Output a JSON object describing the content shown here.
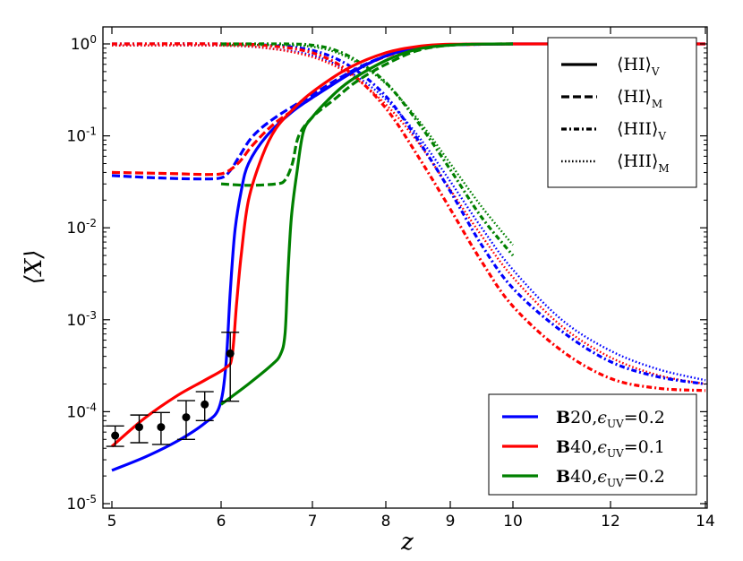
{
  "chart_data": {
    "type": "line",
    "title": "",
    "xlabel": "z",
    "ylabel": "⟨X⟩",
    "x_scale": "linear (compressed below z=10)",
    "y_scale": "log",
    "xlim": [
      5,
      14
    ],
    "ylim": [
      1e-05,
      1.5
    ],
    "x_ticks": [
      {
        "value": 5,
        "label": "5"
      },
      {
        "value": 6,
        "label": "6"
      },
      {
        "value": 7,
        "label": "7"
      },
      {
        "value": 8,
        "label": "8"
      },
      {
        "value": 9,
        "label": "9"
      },
      {
        "value": 10,
        "label": "10"
      },
      {
        "value": 12,
        "label": "12"
      },
      {
        "value": 14,
        "label": "14"
      }
    ],
    "y_ticks": [
      {
        "value": 1e-05,
        "base": "10",
        "exp": "-5"
      },
      {
        "value": 0.0001,
        "base": "10",
        "exp": "-4"
      },
      {
        "value": 0.001,
        "base": "10",
        "exp": "-3"
      },
      {
        "value": 0.01,
        "base": "10",
        "exp": "-2"
      },
      {
        "value": 0.1,
        "base": "10",
        "exp": "-1"
      },
      {
        "value": 1,
        "base": "10",
        "exp": "0"
      }
    ],
    "colors": {
      "B20_0.2": "#0000ff",
      "B40_0.1": "#ff0000",
      "B40_0.2": "#008000",
      "axis": "#000000"
    },
    "series": [
      {
        "name": "B20 eUV=0.2 <HI>_V",
        "color_key": "B20_0.2",
        "style": "solid",
        "points": [
          [
            5.0,
            2.3e-05
          ],
          [
            5.3,
            3.2e-05
          ],
          [
            5.6,
            4.8e-05
          ],
          [
            5.85,
            7.5e-05
          ],
          [
            5.98,
            0.00011
          ],
          [
            6.05,
            0.0003
          ],
          [
            6.1,
            0.002
          ],
          [
            6.15,
            0.009
          ],
          [
            6.22,
            0.025
          ],
          [
            6.3,
            0.05
          ],
          [
            6.5,
            0.1
          ],
          [
            6.8,
            0.19
          ],
          [
            7.2,
            0.33
          ],
          [
            7.6,
            0.52
          ],
          [
            8.0,
            0.74
          ],
          [
            8.5,
            0.92
          ],
          [
            9.0,
            0.98
          ],
          [
            10.0,
            1.0
          ],
          [
            12.0,
            1.0
          ],
          [
            14.0,
            1.0
          ]
        ]
      },
      {
        "name": "B20 eUV=0.2 <HI>_M",
        "color_key": "B20_0.2",
        "style": "dashed",
        "points": [
          [
            5.0,
            0.037
          ],
          [
            5.4,
            0.035
          ],
          [
            5.8,
            0.034
          ],
          [
            6.0,
            0.035
          ],
          [
            6.1,
            0.042
          ],
          [
            6.2,
            0.06
          ],
          [
            6.35,
            0.1
          ],
          [
            6.6,
            0.16
          ],
          [
            7.0,
            0.28
          ],
          [
            7.4,
            0.44
          ],
          [
            7.8,
            0.64
          ],
          [
            8.3,
            0.86
          ],
          [
            8.8,
            0.96
          ],
          [
            9.5,
            0.99
          ],
          [
            10.0,
            1.0
          ]
        ]
      },
      {
        "name": "B20 eUV=0.2 <HII>_V",
        "color_key": "B20_0.2",
        "style": "dashdot",
        "points": [
          [
            5.0,
            1.0
          ],
          [
            6.0,
            1.0
          ],
          [
            6.5,
            0.97
          ],
          [
            7.0,
            0.85
          ],
          [
            7.5,
            0.58
          ],
          [
            8.0,
            0.27
          ],
          [
            8.5,
            0.09
          ],
          [
            9.0,
            0.025
          ],
          [
            9.5,
            0.0065
          ],
          [
            10.0,
            0.0022
          ],
          [
            11.0,
            0.00075
          ],
          [
            12.0,
            0.00035
          ],
          [
            13.0,
            0.00024
          ],
          [
            14.0,
            0.0002
          ]
        ]
      },
      {
        "name": "B20 eUV=0.2 <HII>_M",
        "color_key": "B20_0.2",
        "style": "dotted",
        "points": [
          [
            5.0,
            0.96
          ],
          [
            6.0,
            0.96
          ],
          [
            6.5,
            0.9
          ],
          [
            7.0,
            0.75
          ],
          [
            7.5,
            0.5
          ],
          [
            8.0,
            0.25
          ],
          [
            8.5,
            0.1
          ],
          [
            9.0,
            0.032
          ],
          [
            9.5,
            0.01
          ],
          [
            10.0,
            0.0035
          ],
          [
            11.0,
            0.001
          ],
          [
            12.0,
            0.00046
          ],
          [
            13.0,
            0.00029
          ],
          [
            14.0,
            0.00022
          ]
        ]
      },
      {
        "name": "B40 eUV=0.1 <HI>_V",
        "color_key": "B40_0.1",
        "style": "solid",
        "points": [
          [
            5.0,
            4.2e-05
          ],
          [
            5.3,
            8.5e-05
          ],
          [
            5.6,
            0.00015
          ],
          [
            5.85,
            0.00022
          ],
          [
            6.05,
            0.0003
          ],
          [
            6.12,
            0.0004
          ],
          [
            6.17,
            0.0015
          ],
          [
            6.22,
            0.005
          ],
          [
            6.3,
            0.02
          ],
          [
            6.45,
            0.06
          ],
          [
            6.6,
            0.12
          ],
          [
            6.8,
            0.2
          ],
          [
            7.0,
            0.3
          ],
          [
            7.5,
            0.55
          ],
          [
            8.0,
            0.8
          ],
          [
            8.5,
            0.94
          ],
          [
            9.0,
            0.99
          ],
          [
            10.0,
            1.0
          ],
          [
            12.0,
            1.0
          ],
          [
            14.0,
            1.0
          ]
        ]
      },
      {
        "name": "B40 eUV=0.1 <HI>_M",
        "color_key": "B40_0.1",
        "style": "dashed",
        "points": [
          [
            5.0,
            0.04
          ],
          [
            5.5,
            0.039
          ],
          [
            5.9,
            0.038
          ],
          [
            6.05,
            0.04
          ],
          [
            6.2,
            0.052
          ],
          [
            6.35,
            0.08
          ],
          [
            6.6,
            0.14
          ],
          [
            7.0,
            0.26
          ],
          [
            7.4,
            0.42
          ],
          [
            7.8,
            0.63
          ],
          [
            8.3,
            0.85
          ],
          [
            8.8,
            0.96
          ],
          [
            9.5,
            0.99
          ],
          [
            10.0,
            1.0
          ]
        ]
      },
      {
        "name": "B40 eUV=0.1 <HII>_V",
        "color_key": "B40_0.1",
        "style": "dashdot",
        "points": [
          [
            5.0,
            1.0
          ],
          [
            6.0,
            1.0
          ],
          [
            6.5,
            0.96
          ],
          [
            7.0,
            0.8
          ],
          [
            7.5,
            0.5
          ],
          [
            8.0,
            0.2
          ],
          [
            8.5,
            0.06
          ],
          [
            9.0,
            0.016
          ],
          [
            9.5,
            0.0043
          ],
          [
            10.0,
            0.0014
          ],
          [
            11.0,
            0.00046
          ],
          [
            12.0,
            0.00023
          ],
          [
            13.0,
            0.00018
          ],
          [
            14.0,
            0.00017
          ]
        ]
      },
      {
        "name": "B40 eUV=0.1 <HII>_M",
        "color_key": "B40_0.1",
        "style": "dotted",
        "points": [
          [
            5.0,
            0.96
          ],
          [
            6.0,
            0.96
          ],
          [
            6.5,
            0.9
          ],
          [
            7.0,
            0.72
          ],
          [
            7.5,
            0.47
          ],
          [
            8.0,
            0.22
          ],
          [
            8.5,
            0.085
          ],
          [
            9.0,
            0.026
          ],
          [
            9.5,
            0.0082
          ],
          [
            10.0,
            0.0029
          ],
          [
            11.0,
            0.00085
          ],
          [
            12.0,
            0.00039
          ],
          [
            13.0,
            0.00025
          ],
          [
            14.0,
            0.0002
          ]
        ]
      },
      {
        "name": "B40 eUV=0.2 <HI>_V",
        "color_key": "B40_0.2",
        "style": "solid",
        "points": [
          [
            6.0,
            0.00012
          ],
          [
            6.3,
            0.0002
          ],
          [
            6.55,
            0.00032
          ],
          [
            6.65,
            0.00042
          ],
          [
            6.7,
            0.0007
          ],
          [
            6.73,
            0.003
          ],
          [
            6.77,
            0.013
          ],
          [
            6.83,
            0.04
          ],
          [
            6.9,
            0.11
          ],
          [
            7.0,
            0.16
          ],
          [
            7.2,
            0.24
          ],
          [
            7.5,
            0.39
          ],
          [
            8.0,
            0.66
          ],
          [
            8.5,
            0.88
          ],
          [
            9.0,
            0.97
          ],
          [
            9.5,
            0.995
          ],
          [
            10.0,
            1.0
          ]
        ]
      },
      {
        "name": "B40 eUV=0.2 <HI>_M",
        "color_key": "B40_0.2",
        "style": "dashed",
        "points": [
          [
            6.0,
            0.03
          ],
          [
            6.3,
            0.029
          ],
          [
            6.6,
            0.03
          ],
          [
            6.7,
            0.033
          ],
          [
            6.78,
            0.05
          ],
          [
            6.85,
            0.1
          ],
          [
            7.0,
            0.16
          ],
          [
            7.3,
            0.25
          ],
          [
            7.6,
            0.39
          ],
          [
            8.0,
            0.6
          ],
          [
            8.5,
            0.85
          ],
          [
            9.0,
            0.97
          ],
          [
            9.5,
            0.995
          ],
          [
            10.0,
            1.0
          ]
        ]
      },
      {
        "name": "B40 eUV=0.2 <HII>_V",
        "color_key": "B40_0.2",
        "style": "dashdot",
        "points": [
          [
            6.0,
            1.0
          ],
          [
            6.7,
            1.0
          ],
          [
            7.0,
            0.97
          ],
          [
            7.3,
            0.86
          ],
          [
            7.6,
            0.66
          ],
          [
            8.0,
            0.38
          ],
          [
            8.5,
            0.14
          ],
          [
            9.0,
            0.043
          ],
          [
            9.5,
            0.013
          ],
          [
            10.0,
            0.005
          ]
        ]
      },
      {
        "name": "B40 eUV=0.2 <HII>_M",
        "color_key": "B40_0.2",
        "style": "dotted",
        "points": [
          [
            6.0,
            0.97
          ],
          [
            6.7,
            0.97
          ],
          [
            7.0,
            0.93
          ],
          [
            7.3,
            0.82
          ],
          [
            7.6,
            0.63
          ],
          [
            8.0,
            0.37
          ],
          [
            8.5,
            0.15
          ],
          [
            9.0,
            0.05
          ],
          [
            9.5,
            0.017
          ],
          [
            10.0,
            0.0065
          ]
        ]
      }
    ],
    "observations": {
      "name": "observational data",
      "color_key": "axis",
      "points": [
        {
          "x": 5.03,
          "y": 5.5e-05,
          "lo": 4.2e-05,
          "hi": 7e-05
        },
        {
          "x": 5.25,
          "y": 6.8e-05,
          "lo": 4.6e-05,
          "hi": 9.2e-05
        },
        {
          "x": 5.45,
          "y": 6.8e-05,
          "lo": 4.4e-05,
          "hi": 9.8e-05
        },
        {
          "x": 5.68,
          "y": 8.7e-05,
          "lo": 5e-05,
          "hi": 0.000132
        },
        {
          "x": 5.85,
          "y": 0.00012,
          "lo": 8e-05,
          "hi": 0.000165
        },
        {
          "x": 6.1,
          "y": 0.00043,
          "lo": 0.00013,
          "hi": 0.00073
        }
      ]
    },
    "legend_top": {
      "position": "top-right",
      "entries": [
        {
          "style": "solid",
          "label": "⟨HI⟩",
          "sub": "V"
        },
        {
          "style": "dashed",
          "label": "⟨HI⟩",
          "sub": "M"
        },
        {
          "style": "dashdot",
          "label": "⟨HII⟩",
          "sub": "V"
        },
        {
          "style": "dotted",
          "label": "⟨HII⟩",
          "sub": "M"
        }
      ]
    },
    "legend_bottom": {
      "position": "bottom-right",
      "entries": [
        {
          "color_key": "B20_0.2",
          "model": "B",
          "box": "20",
          "eps": "ϵ",
          "eps_sub": "UV",
          "value": "=0.2"
        },
        {
          "color_key": "B40_0.1",
          "model": "B",
          "box": "40",
          "eps": "ϵ",
          "eps_sub": "UV",
          "value": "=0.1"
        },
        {
          "color_key": "B40_0.2",
          "model": "B",
          "box": "40",
          "eps": "ϵ",
          "eps_sub": "UV",
          "value": "=0.2"
        }
      ]
    }
  }
}
